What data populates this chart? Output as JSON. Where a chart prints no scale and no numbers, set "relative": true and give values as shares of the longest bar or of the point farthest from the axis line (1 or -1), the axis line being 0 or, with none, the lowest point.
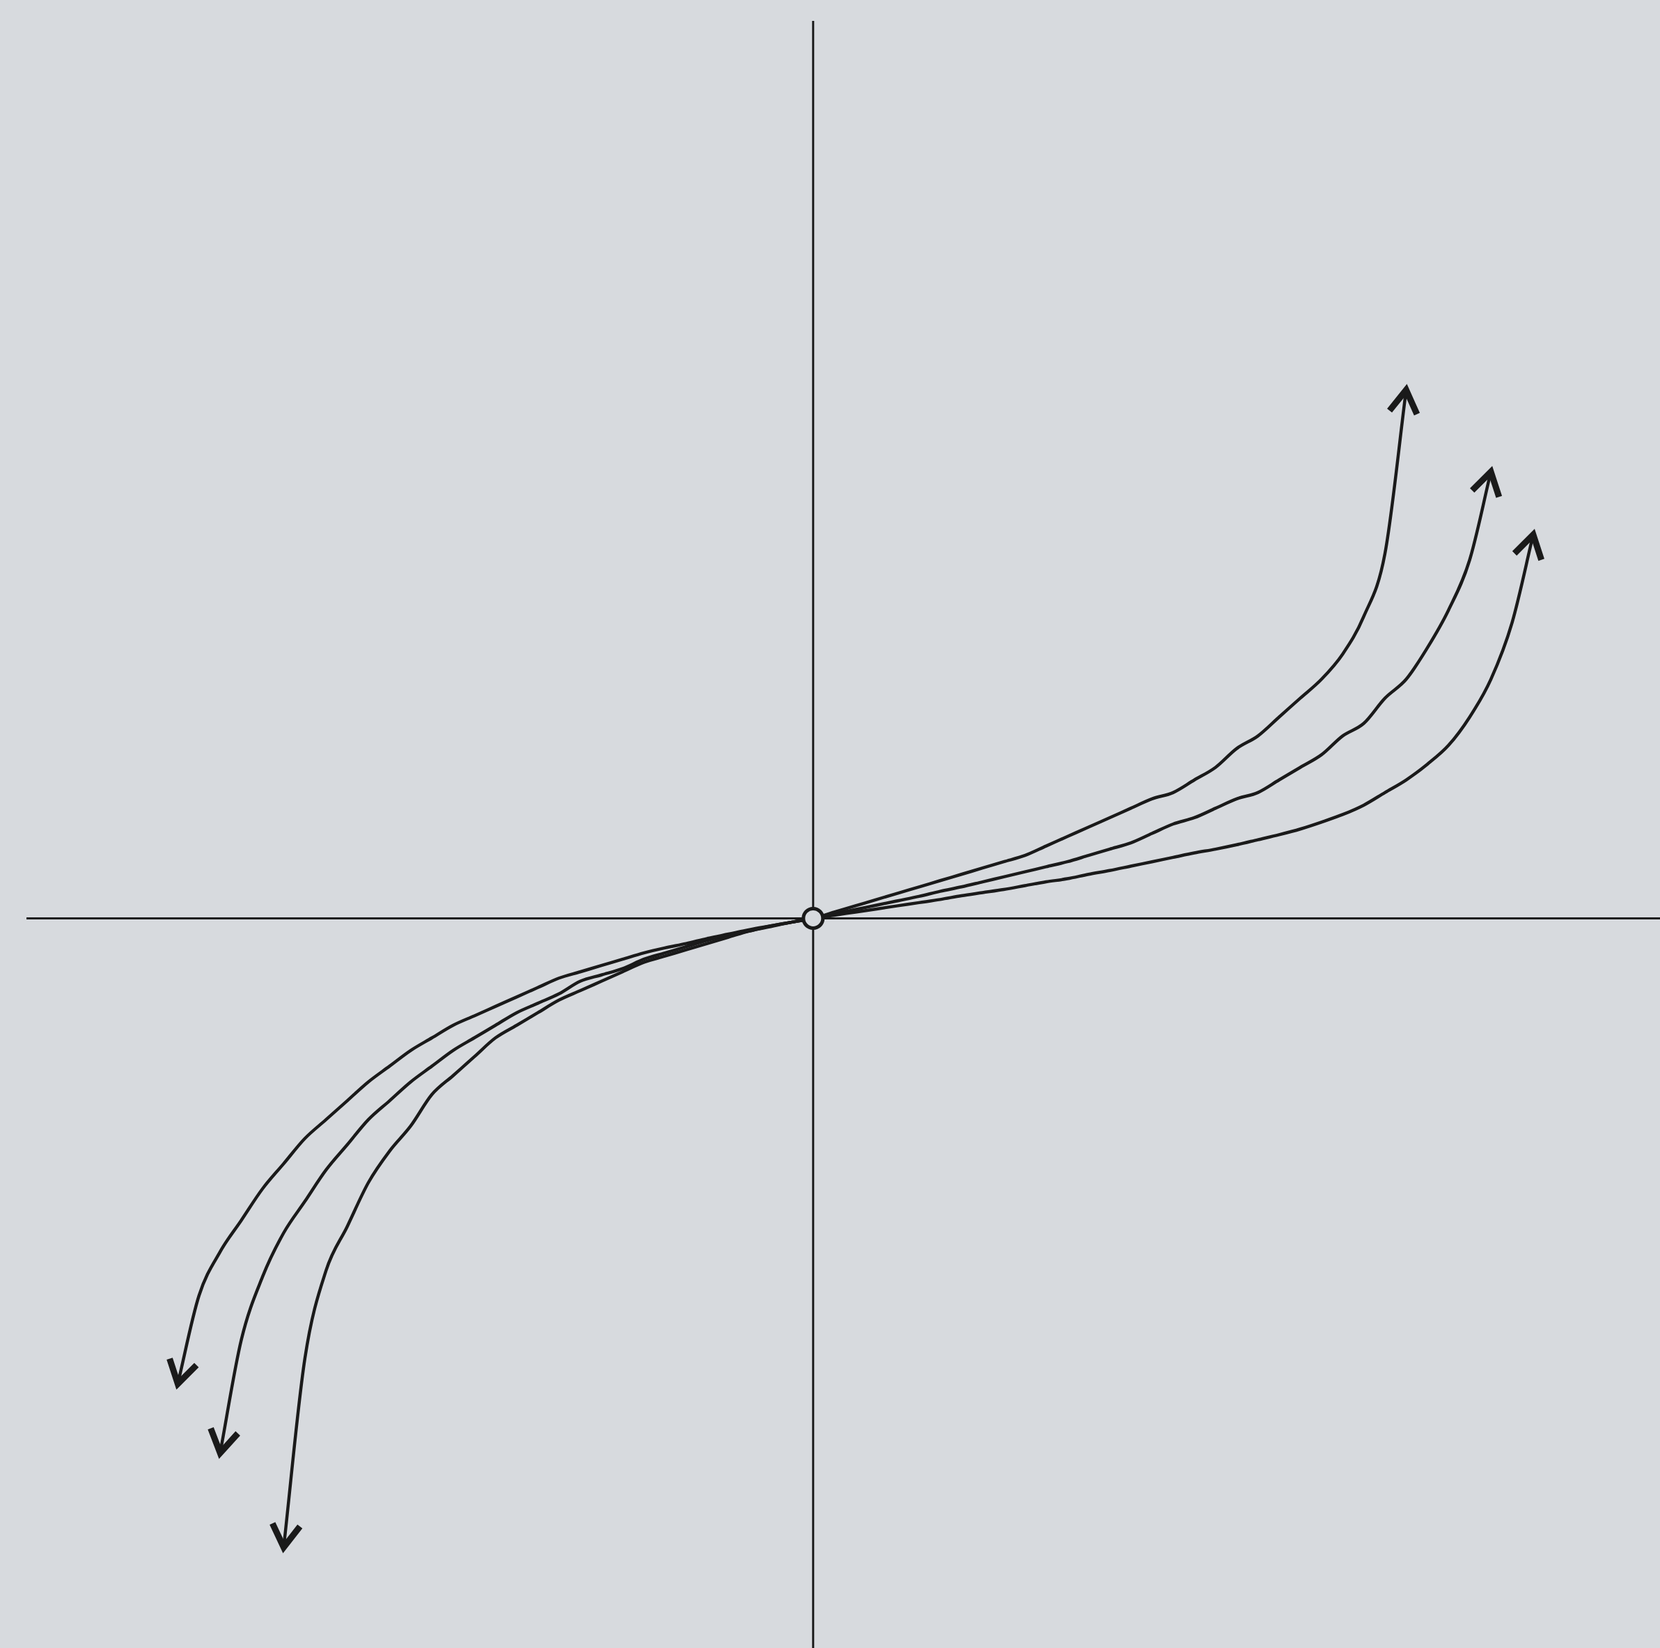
{
  "chart_data": {
    "type": "line",
    "relative": true,
    "marker": "none",
    "line_style": "solid",
    "categories": [
      null,
      null,
      null,
      null,
      null,
      null,
      null,
      null,
      null,
      null,
      null,
      null,
      null,
      null,
      null,
      null,
      null,
      null,
      null,
      null,
      null,
      null,
      null,
      null,
      null,
      null,
      null,
      null,
      null,
      null,
      null,
      null,
      null,
      null,
      null,
      null,
      null,
      null,
      null,
      null,
      null,
      null,
      null,
      null,
      null,
      null,
      null,
      null,
      null,
      null,
      null,
      null,
      null,
      null,
      null,
      null,
      null,
      null,
      null,
      null,
      null,
      null,
      null,
      null,
      null,
      null,
      null,
      null,
      null,
      null,
      null,
      null,
      null,
      null,
      null,
      null,
      null,
      null
    ],
    "series": [
      {
        "color": "#1a1a1a",
        "values": [
          null,
          null,
          null,
          null,
          null,
          null,
          null,
          null,
          null,
          null,
          null,
          null,
          null,
          -1.0,
          -0.7,
          -0.56,
          -0.49,
          -0.42,
          -0.37,
          -0.33,
          -0.28,
          -0.25,
          -0.22,
          -0.19,
          -0.17,
          -0.15,
          -0.13,
          -0.115,
          -0.1,
          -0.085,
          -0.07,
          -0.06,
          -0.05,
          -0.04,
          -0.03,
          -0.02,
          -0.013,
          -0.006,
          0,
          0.01,
          0.02,
          0.03,
          0.04,
          0.05,
          0.06,
          0.07,
          0.08,
          0.09,
          0.1,
          0.115,
          0.13,
          0.145,
          0.16,
          0.175,
          0.19,
          0.2,
          0.22,
          0.24,
          0.27,
          0.29,
          0.32,
          0.35,
          0.38,
          0.42,
          0.48,
          0.58,
          0.84,
          null,
          null,
          null,
          null,
          null,
          null,
          null,
          null,
          null,
          null,
          null
        ]
      },
      {
        "color": "#1a1a1a",
        "values": [
          null,
          null,
          null,
          null,
          null,
          null,
          null,
          null,
          null,
          null,
          -0.85,
          -0.67,
          -0.57,
          -0.5,
          -0.45,
          -0.4,
          -0.36,
          -0.32,
          -0.29,
          -0.26,
          -0.235,
          -0.21,
          -0.19,
          -0.17,
          -0.15,
          -0.135,
          -0.12,
          -0.1,
          -0.09,
          -0.08,
          -0.065,
          -0.055,
          -0.045,
          -0.035,
          -0.027,
          -0.02,
          -0.012,
          -0.006,
          0,
          0.007,
          0.014,
          0.021,
          0.028,
          0.035,
          0.043,
          0.05,
          0.058,
          0.066,
          0.074,
          0.082,
          0.09,
          0.1,
          0.11,
          0.12,
          0.135,
          0.15,
          0.16,
          0.175,
          0.19,
          0.2,
          0.22,
          0.24,
          0.26,
          0.29,
          0.31,
          0.35,
          0.38,
          0.43,
          0.49,
          0.57,
          0.71,
          null,
          null,
          null,
          null,
          null,
          null,
          null
        ]
      },
      {
        "color": "#1a1a1a",
        "values": [
          null,
          null,
          null,
          null,
          null,
          null,
          null,
          null,
          -0.74,
          -0.6,
          -0.53,
          -0.48,
          -0.43,
          -0.39,
          -0.35,
          -0.32,
          -0.29,
          -0.26,
          -0.235,
          -0.21,
          -0.19,
          -0.17,
          -0.155,
          -0.14,
          -0.125,
          -0.11,
          -0.095,
          -0.085,
          -0.075,
          -0.065,
          -0.055,
          -0.047,
          -0.04,
          -0.032,
          -0.025,
          -0.018,
          -0.012,
          -0.006,
          0,
          0.005,
          0.01,
          0.015,
          0.02,
          0.025,
          0.03,
          0.036,
          0.041,
          0.046,
          0.052,
          0.058,
          0.063,
          0.07,
          0.076,
          0.083,
          0.09,
          0.097,
          0.104,
          0.11,
          0.117,
          0.125,
          0.133,
          0.142,
          0.153,
          0.165,
          0.18,
          0.2,
          0.22,
          0.245,
          0.275,
          0.32,
          0.38,
          0.47,
          0.61,
          null,
          null,
          null,
          null,
          null
        ]
      }
    ]
  }
}
